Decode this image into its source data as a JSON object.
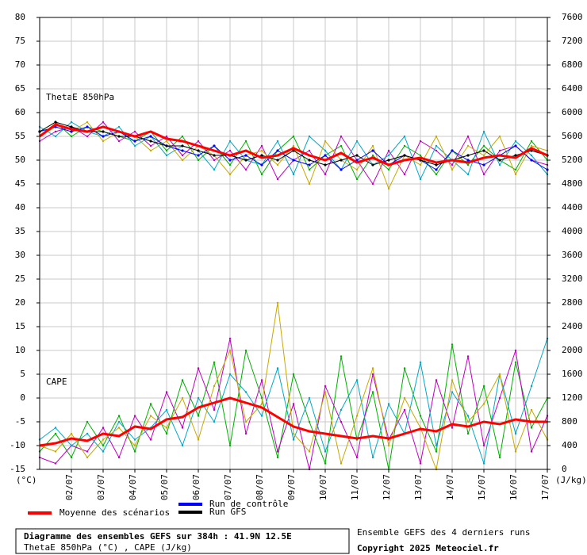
{
  "chart_data": {
    "type": "line",
    "annotations": [
      "ThetaE 850hPa",
      "CAPE"
    ],
    "ylabel": "(°C)",
    "y2label": "(J/kg)",
    "x": [
      0,
      12,
      24,
      36,
      48,
      60,
      72,
      84,
      96,
      108,
      120,
      132,
      144,
      156,
      168,
      180,
      192,
      204,
      216,
      228,
      240,
      252,
      264,
      276,
      288,
      300,
      312,
      324,
      336,
      348,
      360,
      372,
      384
    ],
    "xlim": [
      0,
      384
    ],
    "xticks": [
      {
        "value": 24,
        "label": "02/07"
      },
      {
        "value": 48,
        "label": "03/07"
      },
      {
        "value": 72,
        "label": "04/07"
      },
      {
        "value": 96,
        "label": "05/07"
      },
      {
        "value": 120,
        "label": "06/07"
      },
      {
        "value": 144,
        "label": "07/07"
      },
      {
        "value": 168,
        "label": "08/07"
      },
      {
        "value": 192,
        "label": "09/07"
      },
      {
        "value": 216,
        "label": "10/07"
      },
      {
        "value": 240,
        "label": "11/07"
      },
      {
        "value": 264,
        "label": "12/07"
      },
      {
        "value": 288,
        "label": "13/07"
      },
      {
        "value": 312,
        "label": "14/07"
      },
      {
        "value": 336,
        "label": "15/07"
      },
      {
        "value": 360,
        "label": "16/07"
      },
      {
        "value": 384,
        "label": "17/07"
      }
    ],
    "ylim": [
      -15,
      80
    ],
    "yticks": [
      -15,
      -10,
      -5,
      0,
      5,
      10,
      15,
      20,
      25,
      30,
      35,
      40,
      45,
      50,
      55,
      60,
      65,
      70,
      75,
      80
    ],
    "y2lim": [
      0,
      7600
    ],
    "y2ticks": [
      0,
      400,
      800,
      1200,
      1600,
      2000,
      2400,
      2800,
      3200,
      3600,
      4000,
      4400,
      4800,
      5200,
      5600,
      6000,
      6400,
      6800,
      7200,
      7600
    ],
    "grid": true,
    "series": [
      {
        "color": "#00b000",
        "values": [
          56,
          58,
          55,
          57,
          56,
          55,
          54,
          56,
          52,
          55,
          50,
          53,
          49,
          54,
          47,
          52,
          55,
          48,
          51,
          53,
          46,
          51,
          48,
          53,
          51,
          47,
          52,
          49,
          53,
          50,
          48,
          54,
          50
        ]
      },
      {
        "color": "#c000c0",
        "values": [
          54,
          56,
          57,
          55,
          58,
          54,
          56,
          53,
          55,
          51,
          54,
          50,
          52,
          48,
          53,
          46,
          50,
          52,
          47,
          55,
          50,
          45,
          52,
          47,
          54,
          52,
          49,
          55,
          47,
          52,
          53,
          50,
          49
        ]
      },
      {
        "color": "#00a8c8",
        "values": [
          57,
          55,
          58,
          56,
          55,
          57,
          53,
          55,
          51,
          53,
          52,
          48,
          54,
          50,
          49,
          54,
          47,
          55,
          52,
          48,
          54,
          49,
          51,
          55,
          46,
          53,
          50,
          47,
          56,
          49,
          54,
          51,
          47
        ]
      },
      {
        "color": "#c8a800",
        "values": [
          55,
          57,
          56,
          58,
          54,
          56,
          55,
          52,
          54,
          50,
          53,
          51,
          47,
          51,
          52,
          49,
          53,
          45,
          54,
          50,
          48,
          53,
          44,
          51,
          49,
          55,
          48,
          53,
          51,
          55,
          47,
          53,
          52
        ]
      },
      {
        "color": "#00b000",
        "axis": "y2",
        "values": [
          300,
          600,
          200,
          800,
          400,
          900,
          300,
          1100,
          600,
          1500,
          900,
          1800,
          400,
          2000,
          1200,
          200,
          1600,
          800,
          100,
          1900,
          500,
          1300,
          0,
          1700,
          900,
          300,
          2100,
          600,
          1400,
          200,
          1800,
          700,
          1200
        ]
      },
      {
        "color": "#c000c0",
        "axis": "y2",
        "values": [
          200,
          100,
          400,
          300,
          700,
          200,
          900,
          500,
          1300,
          700,
          1700,
          1000,
          2200,
          600,
          1500,
          300,
          1100,
          0,
          1400,
          800,
          200,
          1600,
          500,
          1000,
          100,
          1500,
          700,
          1900,
          400,
          1200,
          2000,
          300,
          900
        ]
      },
      {
        "color": "#00a8c8",
        "axis": "y2",
        "values": [
          500,
          700,
          400,
          600,
          300,
          800,
          500,
          700,
          1000,
          400,
          1200,
          800,
          1600,
          1300,
          900,
          1700,
          500,
          1200,
          300,
          1000,
          1500,
          200,
          1100,
          600,
          1800,
          400,
          1300,
          900,
          100,
          1600,
          600,
          1400,
          2200
        ]
      },
      {
        "color": "#c8a800",
        "axis": "y2",
        "values": [
          400,
          300,
          600,
          200,
          500,
          700,
          400,
          900,
          700,
          1200,
          500,
          1400,
          2000,
          800,
          1100,
          2800,
          600,
          300,
          1300,
          100,
          900,
          1700,
          400,
          1200,
          700,
          0,
          1500,
          800,
          1100,
          1600,
          300,
          1000,
          500
        ]
      },
      {
        "name": "Run de contrôle",
        "color": "#0000ff",
        "values": [
          56,
          57,
          56,
          57,
          55,
          56,
          54,
          55,
          53,
          52,
          51,
          53,
          50,
          51,
          49,
          52,
          50,
          49,
          51,
          48,
          50,
          52,
          49,
          51,
          50,
          48,
          52,
          50,
          49,
          51,
          53,
          50,
          48
        ]
      },
      {
        "name": "Run GFS",
        "color": "#000000",
        "values": [
          56,
          58,
          57,
          56,
          56,
          55,
          55,
          54,
          53,
          53,
          52,
          51,
          51,
          50,
          51,
          50,
          52,
          50,
          49,
          50,
          51,
          49,
          50,
          51,
          50,
          49,
          50,
          51,
          52,
          50,
          51,
          52,
          51
        ]
      },
      {
        "name": "Moyenne des scénarios",
        "color": "#ff0000",
        "values": [
          55,
          57.5,
          56.5,
          56,
          57,
          56,
          55,
          56,
          54.5,
          54,
          53,
          52,
          51,
          52,
          50.5,
          51,
          52.5,
          51,
          50,
          51.5,
          49.5,
          50.5,
          49,
          50,
          50.5,
          49.5,
          50,
          49.5,
          50.5,
          51,
          50.5,
          52.5,
          51
        ]
      },
      {
        "color": "#ff0000",
        "axis": "y2",
        "values": [
          400,
          440,
          520,
          480,
          600,
          560,
          720,
          680,
          840,
          880,
          1040,
          1120,
          1200,
          1120,
          1040,
          880,
          720,
          640,
          600,
          560,
          520,
          560,
          520,
          600,
          680,
          640,
          760,
          720,
          800,
          760,
          840,
          800,
          800
        ]
      }
    ]
  },
  "footer": {
    "title": "Diagramme des ensembles GEFS sur 384h : 41.9N 12.5E",
    "subtitle": "ThetaE 850hPa (°C) , CAPE (J/kg)",
    "source": "Ensemble GEFS des 4 derniers runs",
    "copyright": "Copyright 2025 Meteociel.fr"
  }
}
